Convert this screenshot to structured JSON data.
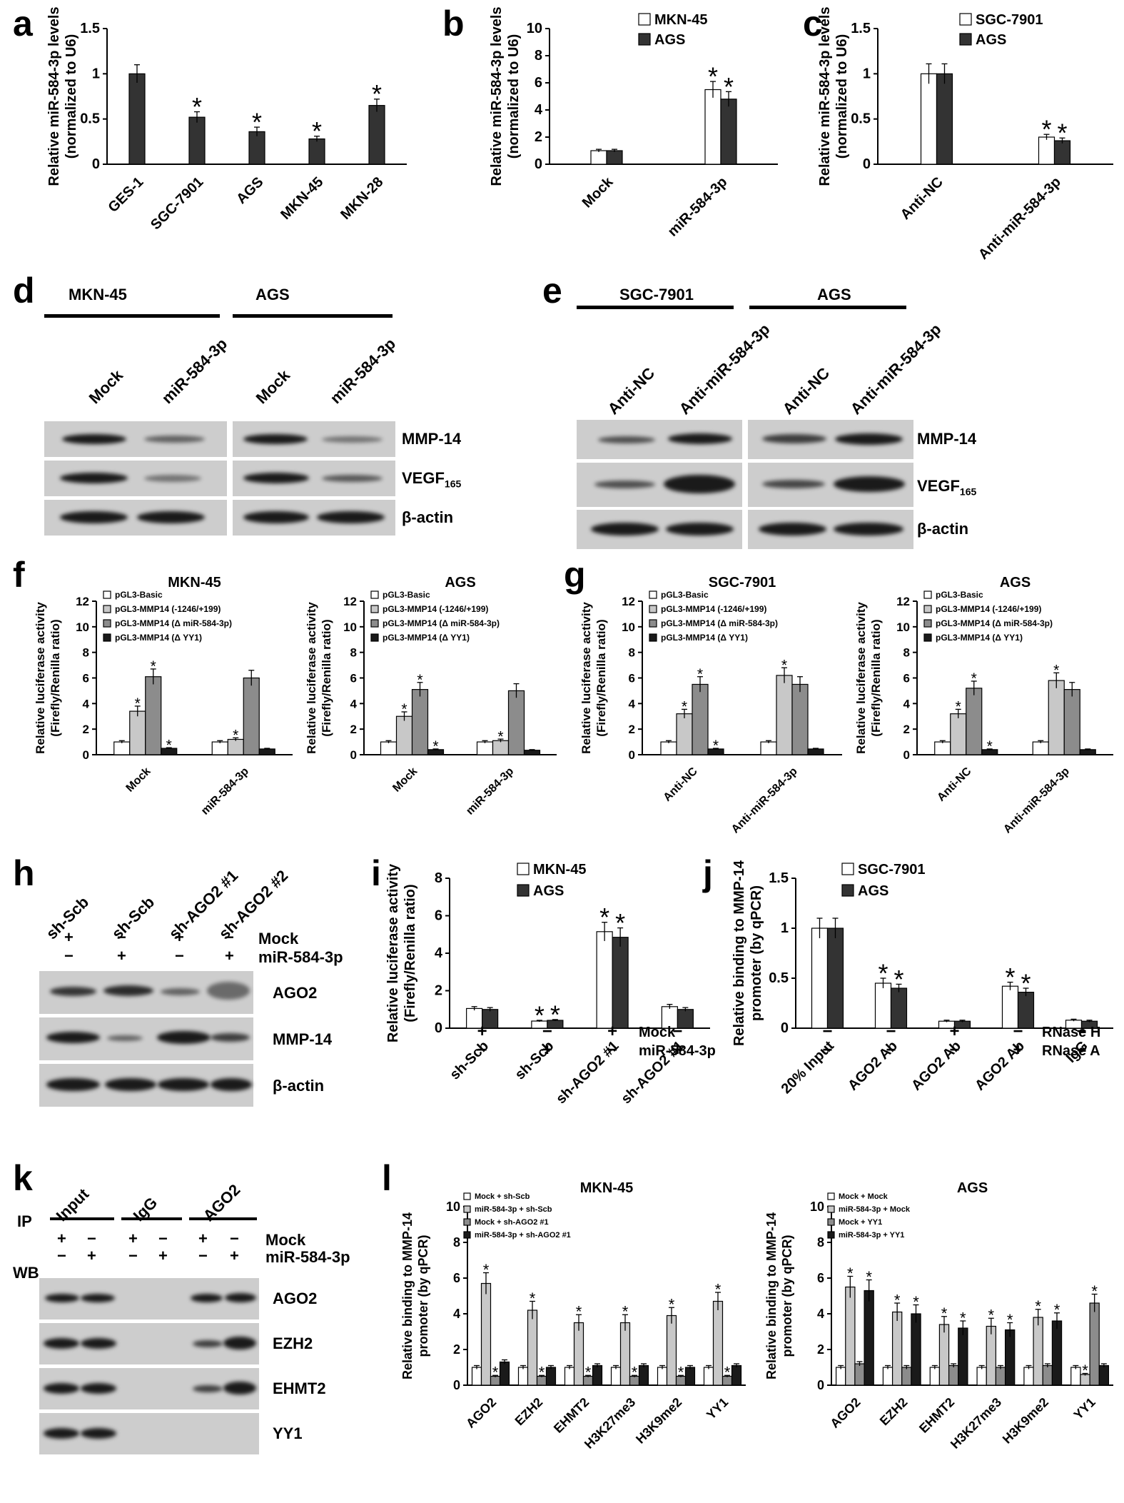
{
  "panel_labels": {
    "a": "a",
    "b": "b",
    "c": "c",
    "d": "d",
    "e": "e",
    "f": "f",
    "g": "g",
    "h": "h",
    "i": "i",
    "j": "j",
    "k": "k",
    "l": "l"
  },
  "star": "*",
  "colors": {
    "dark": "#333333",
    "white": "#ffffff",
    "light": "#c8c8c8",
    "mid": "#8c8c8c",
    "black": "#1a1a1a",
    "blot_bg": "#cdcdcd"
  },
  "chart_data": [
    {
      "id": "a",
      "type": "bar",
      "ylabel": [
        "Relative miR-584-3p levels",
        "(normalized to U6)"
      ],
      "categories": [
        "GES-1",
        "SGC-7901",
        "AGS",
        "MKN-45",
        "MKN-28"
      ],
      "series": [
        {
          "values": [
            1.0,
            0.52,
            0.36,
            0.28,
            0.65
          ],
          "errors": [
            0.1,
            0.06,
            0.05,
            0.03,
            0.07
          ],
          "stars": [
            false,
            true,
            true,
            true,
            true
          ]
        }
      ],
      "ylim": [
        0,
        1.5
      ],
      "yticks": [
        "0",
        "0.5",
        "1",
        "1.5"
      ]
    },
    {
      "id": "b",
      "type": "bar",
      "ylabel": [
        "Relative miR-584-3p levels",
        "(normalized to U6)"
      ],
      "categories": [
        "Mock",
        "miR-584-3p"
      ],
      "series": [
        {
          "name": "MKN-45",
          "values": [
            1.0,
            5.5
          ],
          "errors": [
            0.1,
            0.6
          ],
          "stars": [
            false,
            true
          ]
        },
        {
          "name": "AGS",
          "values": [
            1.0,
            4.8
          ],
          "errors": [
            0.1,
            0.55
          ],
          "stars": [
            false,
            true
          ]
        }
      ],
      "ylim": [
        0,
        10
      ],
      "yticks": [
        "0",
        "2",
        "4",
        "6",
        "8",
        "10"
      ]
    },
    {
      "id": "c",
      "type": "bar",
      "ylabel": [
        "Relative miR-584-3p levels",
        "(normalized to U6)"
      ],
      "categories": [
        "Anti-NC",
        "Anti-miR-584-3p"
      ],
      "series": [
        {
          "name": "SGC-7901",
          "values": [
            1.0,
            0.3
          ],
          "errors": [
            0.11,
            0.03
          ],
          "stars": [
            false,
            true
          ]
        },
        {
          "name": "AGS",
          "values": [
            1.0,
            0.26
          ],
          "errors": [
            0.11,
            0.03
          ],
          "stars": [
            false,
            true
          ]
        }
      ],
      "ylim": [
        0,
        1.5
      ],
      "yticks": [
        "0",
        "0.5",
        "1",
        "1.5"
      ]
    },
    {
      "id": "f1",
      "type": "bar",
      "title": "MKN-45",
      "ylabel": [
        "Relative luciferase activity",
        "(Firefly/Renilla ratio)"
      ],
      "categories": [
        "Mock",
        "miR-584-3p"
      ],
      "series": [
        {
          "name": "pGL3-Basic",
          "values": [
            1.0,
            1.0
          ],
          "errors": [
            0.1,
            0.1
          ],
          "stars": [
            false,
            false
          ]
        },
        {
          "name": "pGL3-MMP14 (-1246/+199)",
          "values": [
            3.4,
            1.2
          ],
          "errors": [
            0.4,
            0.12
          ],
          "stars": [
            true,
            true
          ]
        },
        {
          "name": "pGL3-MMP14 (Δ miR-584-3p)",
          "values": [
            6.1,
            6.0
          ],
          "errors": [
            0.6,
            0.6
          ],
          "stars": [
            true,
            false
          ]
        },
        {
          "name": "pGL3-MMP14 (Δ YY1)",
          "values": [
            0.5,
            0.45
          ],
          "errors": [
            0.05,
            0.05
          ],
          "stars": [
            true,
            false
          ]
        }
      ],
      "ylim": [
        0,
        12
      ],
      "yticks": [
        "0",
        "2",
        "4",
        "6",
        "8",
        "10",
        "12"
      ]
    },
    {
      "id": "f2",
      "type": "bar",
      "title": "AGS",
      "ylabel": [
        "Relative luciferase activity",
        "(Firefly/Renilla ratio)"
      ],
      "categories": [
        "Mock",
        "miR-584-3p"
      ],
      "series": [
        {
          "name": "pGL3-Basic",
          "values": [
            1.0,
            1.0
          ],
          "errors": [
            0.1,
            0.1
          ],
          "stars": [
            false,
            false
          ]
        },
        {
          "name": "pGL3-MMP14 (-1246/+199)",
          "values": [
            3.0,
            1.1
          ],
          "errors": [
            0.35,
            0.12
          ],
          "stars": [
            true,
            true
          ]
        },
        {
          "name": "pGL3-MMP14 (Δ miR-584-3p)",
          "values": [
            5.1,
            5.0
          ],
          "errors": [
            0.55,
            0.55
          ],
          "stars": [
            true,
            false
          ]
        },
        {
          "name": "pGL3-MMP14 (Δ YY1)",
          "values": [
            0.4,
            0.35
          ],
          "errors": [
            0.05,
            0.05
          ],
          "stars": [
            true,
            false
          ]
        }
      ],
      "ylim": [
        0,
        12
      ],
      "yticks": [
        "0",
        "2",
        "4",
        "6",
        "8",
        "10",
        "12"
      ]
    },
    {
      "id": "g1",
      "type": "bar",
      "title": "SGC-7901",
      "ylabel": [
        "Relative luciferase activity",
        "(Firefly/Renilla ratio)"
      ],
      "categories": [
        "Anti-NC",
        "Anti-miR-584-3p"
      ],
      "series": [
        {
          "name": "pGL3-Basic",
          "values": [
            1.0,
            1.0
          ],
          "errors": [
            0.1,
            0.1
          ],
          "stars": [
            false,
            false
          ]
        },
        {
          "name": "pGL3-MMP14 (-1246/+199)",
          "values": [
            3.2,
            6.2
          ],
          "errors": [
            0.35,
            0.6
          ],
          "stars": [
            true,
            true
          ]
        },
        {
          "name": "pGL3-MMP14 (Δ miR-584-3p)",
          "values": [
            5.5,
            5.5
          ],
          "errors": [
            0.6,
            0.6
          ],
          "stars": [
            true,
            false
          ]
        },
        {
          "name": "pGL3-MMP14 (Δ YY1)",
          "values": [
            0.45,
            0.45
          ],
          "errors": [
            0.05,
            0.05
          ],
          "stars": [
            true,
            false
          ]
        }
      ],
      "ylim": [
        0,
        12
      ],
      "yticks": [
        "0",
        "2",
        "4",
        "6",
        "8",
        "10",
        "12"
      ]
    },
    {
      "id": "g2",
      "type": "bar",
      "title": "AGS",
      "ylabel": [
        "Relative luciferase activity",
        "(Firefly/Renilla ratio)"
      ],
      "categories": [
        "Anti-NC",
        "Anti-miR-584-3p"
      ],
      "series": [
        {
          "name": "pGL3-Basic",
          "values": [
            1.0,
            1.0
          ],
          "errors": [
            0.1,
            0.1
          ],
          "stars": [
            false,
            false
          ]
        },
        {
          "name": "pGL3-MMP14 (-1246/+199)",
          "values": [
            3.2,
            5.8
          ],
          "errors": [
            0.35,
            0.6
          ],
          "stars": [
            true,
            true
          ]
        },
        {
          "name": "pGL3-MMP14 (Δ miR-584-3p)",
          "values": [
            5.2,
            5.1
          ],
          "errors": [
            0.55,
            0.55
          ],
          "stars": [
            true,
            false
          ]
        },
        {
          "name": "pGL3-MMP14 (Δ YY1)",
          "values": [
            0.4,
            0.4
          ],
          "errors": [
            0.05,
            0.05
          ],
          "stars": [
            true,
            false
          ]
        }
      ],
      "ylim": [
        0,
        12
      ],
      "yticks": [
        "0",
        "2",
        "4",
        "6",
        "8",
        "10",
        "12"
      ]
    },
    {
      "id": "i",
      "type": "bar",
      "ylabel": [
        "Relative luciferase activity",
        "(Firefly/Renilla ratio)"
      ],
      "categories": [
        "sh-Scb",
        "sh-Scb",
        "sh-AGO2 #1",
        "sh-AGO2 #1"
      ],
      "series": [
        {
          "name": "MKN-45",
          "values": [
            1.05,
            0.38,
            5.15,
            1.15
          ],
          "errors": [
            0.1,
            0.04,
            0.5,
            0.12
          ],
          "stars": [
            false,
            true,
            true,
            false
          ]
        },
        {
          "name": "AGS",
          "values": [
            1.0,
            0.42,
            4.85,
            1.0
          ],
          "errors": [
            0.1,
            0.04,
            0.5,
            0.1
          ],
          "stars": [
            false,
            true,
            true,
            false
          ]
        }
      ],
      "ylim": [
        0,
        8
      ],
      "yticks": [
        "0",
        "2",
        "4",
        "6",
        "8"
      ],
      "row_labels": [
        "Mock",
        "miR-584-3p"
      ],
      "row_marks": [
        [
          "+",
          "−",
          "+",
          "−"
        ],
        [
          "−",
          "+",
          "−",
          "+"
        ]
      ]
    },
    {
      "id": "j",
      "type": "bar",
      "ylabel": [
        "Relative binding to MMP-14",
        "promoter (by qPCR)"
      ],
      "categories": [
        "20% Input",
        "AGO2 Ab",
        "AGO2 Ab",
        "AGO2 Ab",
        "IgG"
      ],
      "series": [
        {
          "name": "SGC-7901",
          "values": [
            1.0,
            0.45,
            0.07,
            0.42,
            0.08
          ],
          "errors": [
            0.1,
            0.05,
            0.01,
            0.04,
            0.01
          ],
          "stars": [
            false,
            true,
            false,
            true,
            false
          ]
        },
        {
          "name": "AGS",
          "values": [
            1.0,
            0.4,
            0.07,
            0.36,
            0.07
          ],
          "errors": [
            0.1,
            0.04,
            0.01,
            0.04,
            0.01
          ],
          "stars": [
            false,
            true,
            false,
            true,
            false
          ]
        }
      ],
      "ylim": [
        0,
        1.5
      ],
      "yticks": [
        "0",
        "0.5",
        "1",
        "1.5"
      ],
      "row_labels": [
        "RNase H",
        "RNase A"
      ],
      "row_marks": [
        [
          "−",
          "−",
          "+",
          "−",
          "−"
        ],
        [
          "−",
          "−",
          "−",
          "+",
          "−"
        ]
      ]
    },
    {
      "id": "l1",
      "type": "bar",
      "title": "MKN-45",
      "ylabel": [
        "Relative binding to MMP-14",
        "promoter (by qPCR)"
      ],
      "categories": [
        "AGO2",
        "EZH2",
        "EHMT2",
        "H3K27me3",
        "H3K9me2",
        "YY1"
      ],
      "series": [
        {
          "name": "Mock + sh-Scb",
          "values": [
            1.0,
            1.0,
            1.0,
            1.0,
            1.0,
            1.0
          ],
          "errors": [
            0.1,
            0.1,
            0.1,
            0.1,
            0.1,
            0.1
          ],
          "stars": [
            false,
            false,
            false,
            false,
            false,
            false
          ]
        },
        {
          "name": "miR-584-3p + sh-Scb",
          "values": [
            5.7,
            4.2,
            3.5,
            3.5,
            3.9,
            4.7
          ],
          "errors": [
            0.6,
            0.5,
            0.45,
            0.45,
            0.45,
            0.5
          ],
          "stars": [
            true,
            true,
            true,
            true,
            true,
            true
          ]
        },
        {
          "name": "Mock + sh-AGO2 #1",
          "values": [
            0.5,
            0.5,
            0.5,
            0.5,
            0.5,
            0.5
          ],
          "errors": [
            0.05,
            0.05,
            0.05,
            0.05,
            0.05,
            0.05
          ],
          "stars": [
            true,
            true,
            true,
            true,
            true,
            true
          ]
        },
        {
          "name": "miR-584-3p + sh-AGO2 #1",
          "values": [
            1.3,
            1.0,
            1.1,
            1.1,
            1.0,
            1.1
          ],
          "errors": [
            0.12,
            0.1,
            0.1,
            0.1,
            0.1,
            0.1
          ],
          "stars": [
            false,
            false,
            false,
            false,
            false,
            false
          ]
        }
      ],
      "ylim": [
        0,
        10
      ],
      "yticks": [
        "0",
        "2",
        "4",
        "6",
        "8",
        "10"
      ]
    },
    {
      "id": "l2",
      "type": "bar",
      "title": "AGS",
      "ylabel": [
        "Relative binding to MMP-14",
        "promoter (by qPCR)"
      ],
      "categories": [
        "AGO2",
        "EZH2",
        "EHMT2",
        "H3K27me3",
        "H3K9me2",
        "YY1"
      ],
      "series": [
        {
          "name": "Mock + Mock",
          "values": [
            1.0,
            1.0,
            1.0,
            1.0,
            1.0,
            1.0
          ],
          "errors": [
            0.1,
            0.1,
            0.1,
            0.1,
            0.1,
            0.1
          ],
          "stars": [
            false,
            false,
            false,
            false,
            false,
            false
          ]
        },
        {
          "name": "miR-584-3p + Mock",
          "values": [
            5.5,
            4.1,
            3.4,
            3.3,
            3.8,
            0.6
          ],
          "errors": [
            0.6,
            0.5,
            0.45,
            0.45,
            0.45,
            0.06
          ],
          "stars": [
            true,
            true,
            true,
            true,
            true,
            true
          ]
        },
        {
          "name": "Mock + YY1",
          "values": [
            1.2,
            1.0,
            1.1,
            1.0,
            1.1,
            4.6
          ],
          "errors": [
            0.12,
            0.1,
            0.1,
            0.1,
            0.1,
            0.5
          ],
          "stars": [
            false,
            false,
            false,
            false,
            false,
            true
          ]
        },
        {
          "name": "miR-584-3p + YY1",
          "values": [
            5.3,
            4.0,
            3.2,
            3.1,
            3.6,
            1.1
          ],
          "errors": [
            0.6,
            0.5,
            0.4,
            0.4,
            0.45,
            0.1
          ],
          "stars": [
            true,
            true,
            true,
            true,
            true,
            false
          ]
        }
      ],
      "ylim": [
        0,
        10
      ],
      "yticks": [
        "0",
        "2",
        "4",
        "6",
        "8",
        "10"
      ]
    }
  ],
  "blots": {
    "d": {
      "groups": [
        "MKN-45",
        "AGS"
      ],
      "lanes": [
        "Mock",
        "miR-584-3p",
        "Mock",
        "miR-584-3p"
      ],
      "rows": [
        "MMP-14",
        "VEGF",
        "β-actin"
      ],
      "vegf_sub": "165"
    },
    "e": {
      "groups": [
        "SGC-7901",
        "AGS"
      ],
      "lanes": [
        "Anti-NC",
        "Anti-miR-584-3p",
        "Anti-NC",
        "Anti-miR-584-3p"
      ],
      "rows": [
        "MMP-14",
        "VEGF",
        "β-actin"
      ],
      "vegf_sub": "165"
    },
    "h": {
      "lanes": [
        "sh-Scb",
        "sh-Scb",
        "sh-AGO2 #1",
        "sh-AGO2 #2"
      ],
      "row_labels": [
        "Mock",
        "miR-584-3p"
      ],
      "mock_marks": [
        "+",
        "−",
        "+",
        "−"
      ],
      "mir_marks": [
        "−",
        "+",
        "−",
        "+"
      ],
      "rows": [
        "AGO2",
        "MMP-14",
        "β-actin"
      ]
    },
    "k": {
      "ip": "IP",
      "wb": "WB",
      "groups": [
        "Input",
        "IgG",
        "AGO2"
      ],
      "row_labels": [
        "Mock",
        "miR-584-3p"
      ],
      "mock_marks": [
        "+",
        "−",
        "+",
        "−",
        "+",
        "−"
      ],
      "mir_marks": [
        "−",
        "+",
        "−",
        "+",
        "−",
        "+"
      ],
      "rows": [
        "AGO2",
        "EZH2",
        "EHMT2",
        "YY1"
      ]
    }
  }
}
